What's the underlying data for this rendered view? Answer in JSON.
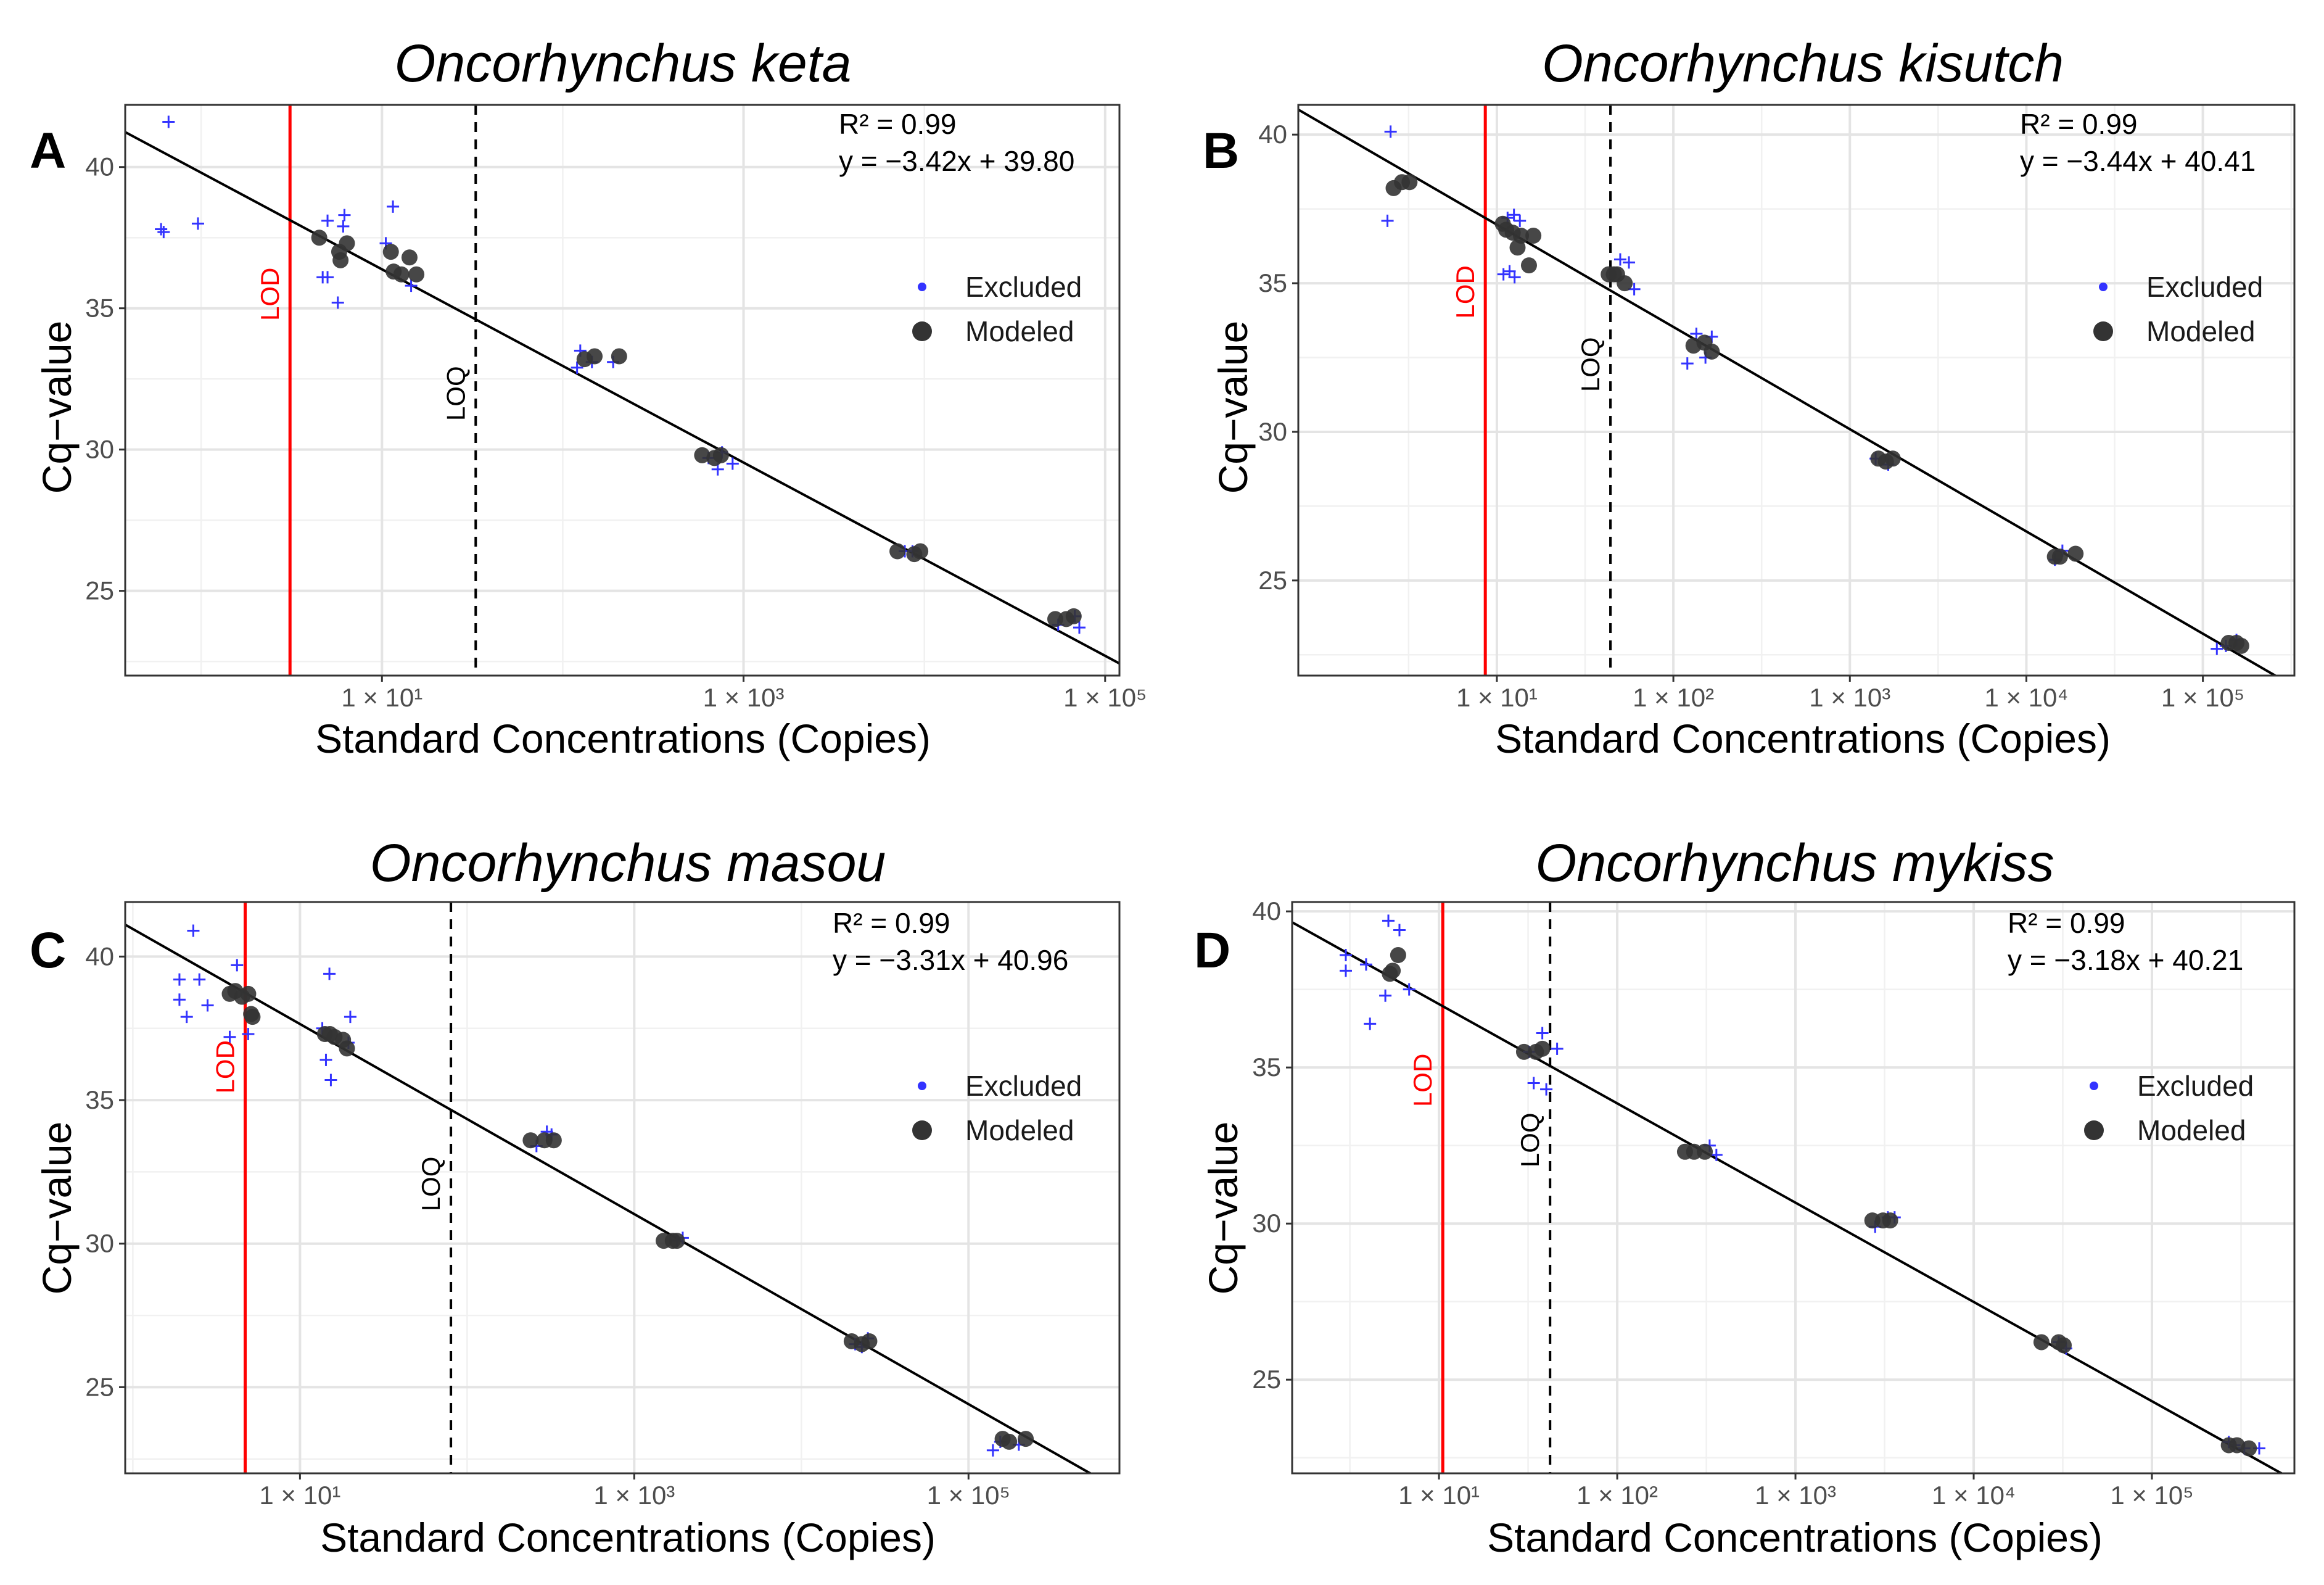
{
  "colors": {
    "excluded": "#3333ff",
    "modeled": "#333333",
    "lod": "#ff0000",
    "loq": "#000000",
    "fit": "#000000",
    "grid": "#ebebeb"
  },
  "chart_data": [
    {
      "panel_label": "A",
      "title": "Oncorhynchus keta",
      "type": "scatter",
      "x_scale": "log10",
      "xlim": [
        0.38,
        120000
      ],
      "ylim": [
        22.0,
        42.2
      ],
      "xlabel": "Standard Concentrations (Copies)",
      "ylabel": "Cq−value",
      "x_ticks": [
        {
          "value": 10,
          "label": "1 × 10¹"
        },
        {
          "value": 1000,
          "label": "1 × 10³"
        },
        {
          "value": 100000,
          "label": "1 × 10⁵"
        }
      ],
      "y_ticks": [
        25,
        30,
        35,
        40
      ],
      "r2_label": "R² = 0.99",
      "equation_label": "y = −3.42x + 39.80",
      "fit": {
        "slope": -3.42,
        "intercept": 39.8
      },
      "lod": {
        "x": 3.1,
        "label": "LOD"
      },
      "loq": {
        "x": 33,
        "label": "LOQ"
      },
      "legend": [
        {
          "name": "Excluded",
          "marker": "plus"
        },
        {
          "name": "Modeled",
          "marker": "circle"
        }
      ],
      "excluded_points": [
        [
          0.66,
          41.6
        ],
        [
          0.6,
          37.8
        ],
        [
          0.62,
          37.7
        ],
        [
          0.96,
          38.0
        ],
        [
          5.0,
          38.1
        ],
        [
          6.2,
          38.3
        ],
        [
          6.1,
          37.9
        ],
        [
          4.7,
          36.1
        ],
        [
          5.0,
          36.1
        ],
        [
          5.7,
          35.2
        ],
        [
          10.5,
          37.3
        ],
        [
          11.5,
          38.6
        ],
        [
          14.5,
          35.8
        ],
        [
          125,
          33.5
        ],
        [
          120,
          32.9
        ],
        [
          145,
          33.1
        ],
        [
          190,
          33.1
        ],
        [
          640,
          29.7
        ],
        [
          720,
          29.3
        ],
        [
          760,
          29.9
        ],
        [
          870,
          29.5
        ],
        [
          7800,
          26.4
        ],
        [
          8600,
          26.4
        ],
        [
          55000,
          23.8
        ],
        [
          68000,
          24.1
        ],
        [
          72000,
          23.7
        ]
      ],
      "modeled_points": [
        [
          4.5,
          37.5
        ],
        [
          5.8,
          37.0
        ],
        [
          5.9,
          36.7
        ],
        [
          6.4,
          37.3
        ],
        [
          11.2,
          37.0
        ],
        [
          11.6,
          36.3
        ],
        [
          12.8,
          36.2
        ],
        [
          14.2,
          36.8
        ],
        [
          15.5,
          36.2
        ],
        [
          132,
          33.2
        ],
        [
          150,
          33.3
        ],
        [
          205,
          33.3
        ],
        [
          590,
          29.8
        ],
        [
          690,
          29.7
        ],
        [
          750,
          29.8
        ],
        [
          7100,
          26.4
        ],
        [
          8800,
          26.3
        ],
        [
          9500,
          26.4
        ],
        [
          53000,
          24.0
        ],
        [
          61000,
          24.0
        ],
        [
          67000,
          24.1
        ]
      ]
    },
    {
      "panel_label": "B",
      "title": "Oncorhynchus kisutch",
      "type": "scatter",
      "x_scale": "log10",
      "xlim": [
        0.75,
        330000
      ],
      "ylim": [
        21.8,
        41.0
      ],
      "xlabel": "Standard Concentrations (Copies)",
      "ylabel": "Cq−value",
      "x_ticks": [
        {
          "value": 10,
          "label": "1 × 10¹"
        },
        {
          "value": 100,
          "label": "1 × 10²"
        },
        {
          "value": 1000,
          "label": "1 × 10³"
        },
        {
          "value": 10000,
          "label": "1 × 10⁴"
        },
        {
          "value": 100000,
          "label": "1 × 10⁵"
        }
      ],
      "y_ticks": [
        25,
        30,
        35,
        40
      ],
      "r2_label": "R² = 0.99",
      "equation_label": "y = −3.44x + 40.41",
      "fit": {
        "slope": -3.44,
        "intercept": 40.41
      },
      "lod": {
        "x": 8.6,
        "label": "LOD"
      },
      "loq": {
        "x": 44,
        "label": "LOQ"
      },
      "legend": [
        {
          "name": "Excluded",
          "marker": "plus"
        },
        {
          "name": "Modeled",
          "marker": "circle"
        }
      ],
      "excluded_points": [
        [
          2.5,
          40.1
        ],
        [
          2.4,
          37.1
        ],
        [
          11.5,
          37.2
        ],
        [
          12.5,
          37.3
        ],
        [
          13.5,
          37.1
        ],
        [
          10.9,
          35.3
        ],
        [
          11.8,
          35.4
        ],
        [
          12.6,
          35.2
        ],
        [
          50,
          35.8
        ],
        [
          56,
          35.7
        ],
        [
          60,
          34.8
        ],
        [
          135,
          33.3
        ],
        [
          120,
          32.3
        ],
        [
          152,
          32.5
        ],
        [
          165,
          33.2
        ],
        [
          1400,
          29.1
        ],
        [
          1650,
          28.9
        ],
        [
          16000,
          26.0
        ],
        [
          14500,
          25.7
        ],
        [
          120000,
          22.7
        ],
        [
          135000,
          22.8
        ],
        [
          155000,
          23.0
        ]
      ],
      "modeled_points": [
        [
          2.6,
          38.2
        ],
        [
          2.9,
          38.4
        ],
        [
          3.2,
          38.4
        ],
        [
          10.8,
          37.0
        ],
        [
          11.3,
          36.8
        ],
        [
          12.3,
          36.7
        ],
        [
          13.1,
          36.2
        ],
        [
          13.7,
          36.6
        ],
        [
          15.2,
          35.6
        ],
        [
          16.1,
          36.6
        ],
        [
          43,
          35.3
        ],
        [
          46,
          35.3
        ],
        [
          48,
          35.3
        ],
        [
          53,
          35.0
        ],
        [
          130,
          32.9
        ],
        [
          150,
          33.0
        ],
        [
          165,
          32.7
        ],
        [
          1450,
          29.1
        ],
        [
          1600,
          29.0
        ],
        [
          1750,
          29.1
        ],
        [
          14500,
          25.8
        ],
        [
          15500,
          25.8
        ],
        [
          19000,
          25.9
        ],
        [
          140000,
          22.9
        ],
        [
          155000,
          22.9
        ],
        [
          165000,
          22.8
        ]
      ]
    },
    {
      "panel_label": "C",
      "title": "Oncorhynchus masou",
      "type": "scatter",
      "x_scale": "log10",
      "xlim": [
        0.9,
        800000
      ],
      "ylim": [
        22.0,
        41.9
      ],
      "xlabel": "Standard Concentrations (Copies)",
      "ylabel": "Cq−value",
      "x_ticks": [
        {
          "value": 10,
          "label": "1 × 10¹"
        },
        {
          "value": 1000,
          "label": "1 × 10³"
        },
        {
          "value": 100000,
          "label": "1 × 10⁵"
        }
      ],
      "y_ticks": [
        25,
        30,
        35,
        40
      ],
      "r2_label": "R² = 0.99",
      "equation_label": "y = −3.31x + 40.96",
      "fit": {
        "slope": -3.31,
        "intercept": 40.96
      },
      "lod": {
        "x": 4.7,
        "label": "LOD"
      },
      "loq": {
        "x": 80,
        "label": "LOQ"
      },
      "legend": [
        {
          "name": "Excluded",
          "marker": "plus"
        },
        {
          "name": "Modeled",
          "marker": "circle"
        }
      ],
      "excluded_points": [
        [
          2.3,
          40.9
        ],
        [
          1.9,
          39.2
        ],
        [
          2.5,
          39.2
        ],
        [
          1.9,
          38.5
        ],
        [
          2.1,
          37.9
        ],
        [
          2.8,
          38.3
        ],
        [
          3.8,
          37.2
        ],
        [
          4.2,
          39.7
        ],
        [
          4.9,
          37.3
        ],
        [
          15,
          39.4
        ],
        [
          13.6,
          37.5
        ],
        [
          14.3,
          36.4
        ],
        [
          15.3,
          35.7
        ],
        [
          20,
          37.9
        ],
        [
          19.5,
          37.0
        ],
        [
          260,
          33.4
        ],
        [
          300,
          33.9
        ],
        [
          320,
          33.8
        ],
        [
          1800,
          30.1
        ],
        [
          1950,
          30.2
        ],
        [
          21000,
          26.5
        ],
        [
          23000,
          26.4
        ],
        [
          25000,
          26.7
        ],
        [
          140000,
          22.8
        ],
        [
          155000,
          23.1
        ],
        [
          200000,
          23.0
        ]
      ],
      "modeled_points": [
        [
          3.8,
          38.7
        ],
        [
          4.1,
          38.8
        ],
        [
          4.5,
          38.6
        ],
        [
          4.9,
          38.7
        ],
        [
          5.1,
          38.0
        ],
        [
          5.2,
          37.9
        ],
        [
          14.1,
          37.3
        ],
        [
          15.1,
          37.3
        ],
        [
          16.1,
          37.2
        ],
        [
          18.1,
          37.1
        ],
        [
          19.1,
          36.8
        ],
        [
          240,
          33.6
        ],
        [
          290,
          33.6
        ],
        [
          330,
          33.6
        ],
        [
          1500,
          30.1
        ],
        [
          1700,
          30.1
        ],
        [
          1800,
          30.1
        ],
        [
          20000,
          26.6
        ],
        [
          23000,
          26.5
        ],
        [
          25500,
          26.6
        ],
        [
          160000,
          23.2
        ],
        [
          175000,
          23.1
        ],
        [
          220000,
          23.2
        ]
      ]
    },
    {
      "panel_label": "D",
      "title": "Oncorhynchus mykiss",
      "type": "scatter",
      "x_scale": "log10",
      "xlim": [
        1.5,
        630000
      ],
      "ylim": [
        22.0,
        40.3
      ],
      "xlabel": "Standard Concentrations (Copies)",
      "ylabel": "Cq−value",
      "x_ticks": [
        {
          "value": 10,
          "label": "1 × 10¹"
        },
        {
          "value": 100,
          "label": "1 × 10²"
        },
        {
          "value": 1000,
          "label": "1 × 10³"
        },
        {
          "value": 10000,
          "label": "1 × 10⁴"
        },
        {
          "value": 100000,
          "label": "1 × 10⁵"
        }
      ],
      "y_ticks": [
        25,
        30,
        35,
        40
      ],
      "r2_label": "R² = 0.99",
      "equation_label": "y = −3.18x + 40.21",
      "fit": {
        "slope": -3.18,
        "intercept": 40.21
      },
      "lod": {
        "x": 10.5,
        "label": "LOD"
      },
      "loq": {
        "x": 42,
        "label": "LOQ"
      },
      "legend": [
        {
          "name": "Excluded",
          "marker": "plus"
        },
        {
          "name": "Modeled",
          "marker": "circle"
        }
      ],
      "excluded_points": [
        [
          3.0,
          38.6
        ],
        [
          3.0,
          38.1
        ],
        [
          3.9,
          38.3
        ],
        [
          4.1,
          36.4
        ],
        [
          5.2,
          39.7
        ],
        [
          5.0,
          37.3
        ],
        [
          6.0,
          39.4
        ],
        [
          6.8,
          37.5
        ],
        [
          32,
          35.5
        ],
        [
          38,
          36.1
        ],
        [
          34,
          34.5
        ],
        [
          40,
          34.3
        ],
        [
          46,
          35.6
        ],
        [
          330,
          32.5
        ],
        [
          360,
          32.2
        ],
        [
          2800,
          29.9
        ],
        [
          3300,
          30.2
        ],
        [
          3600,
          30.2
        ],
        [
          30000,
          26.2
        ],
        [
          33000,
          26.0
        ],
        [
          270000,
          23.0
        ],
        [
          290000,
          22.9
        ],
        [
          330000,
          22.8
        ],
        [
          400000,
          22.8
        ]
      ],
      "modeled_points": [
        [
          5.3,
          38.0
        ],
        [
          5.5,
          38.1
        ],
        [
          5.9,
          38.6
        ],
        [
          30,
          35.5
        ],
        [
          35,
          35.5
        ],
        [
          38,
          35.6
        ],
        [
          240,
          32.3
        ],
        [
          270,
          32.3
        ],
        [
          310,
          32.3
        ],
        [
          2700,
          30.1
        ],
        [
          3100,
          30.1
        ],
        [
          3400,
          30.1
        ],
        [
          24000,
          26.2
        ],
        [
          30000,
          26.2
        ],
        [
          32000,
          26.1
        ],
        [
          270000,
          22.9
        ],
        [
          300000,
          22.9
        ],
        [
          350000,
          22.8
        ]
      ]
    }
  ]
}
